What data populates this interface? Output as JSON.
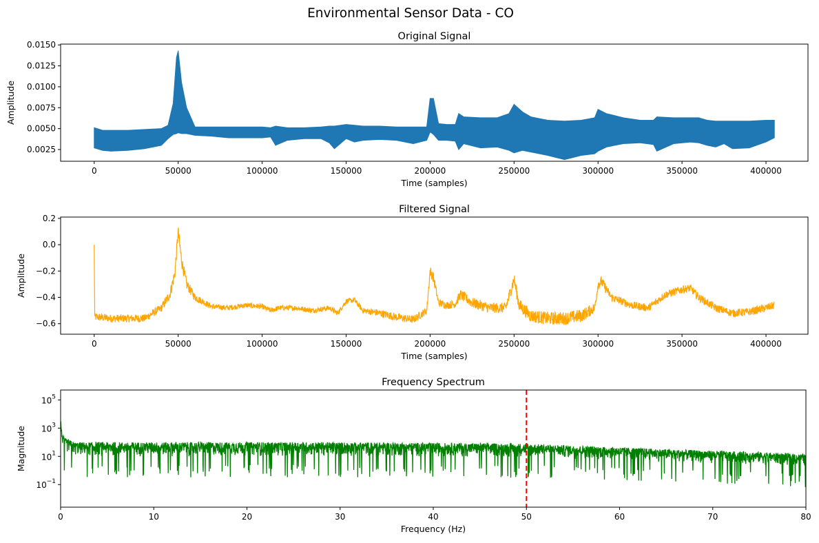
{
  "figure": {
    "suptitle": "Environmental Sensor Data - CO"
  },
  "chart_data": [
    {
      "type": "line",
      "title": "Original Signal",
      "xlabel": "Time (samples)",
      "ylabel": "Amplitude",
      "color": "#1f77b4",
      "render": "band",
      "xlim": [
        -20000,
        425000
      ],
      "ylim": [
        0.0011,
        0.0151
      ],
      "xticks": [
        0,
        50000,
        100000,
        150000,
        200000,
        250000,
        300000,
        350000,
        400000
      ],
      "xtick_labels": [
        "0",
        "50000",
        "100000",
        "150000",
        "200000",
        "250000",
        "300000",
        "350000",
        "400000"
      ],
      "yticks": [
        0.0025,
        0.005,
        0.0075,
        0.01,
        0.0125,
        0.015
      ],
      "ytick_labels": [
        "0.0025",
        "0.0050",
        "0.0075",
        "0.0100",
        "0.0125",
        "0.0150"
      ],
      "series": [
        {
          "x": [
            0,
            5000,
            10000,
            20000,
            30000,
            40000,
            44000,
            47000,
            49000,
            50000,
            52000,
            55000,
            60000,
            70000,
            80000,
            90000,
            100000,
            105000,
            108000,
            115000,
            125000,
            135000,
            140000,
            143000,
            150000,
            155000,
            160000,
            170000,
            180000,
            190000,
            198000,
            200000,
            202000,
            205000,
            210000,
            215000,
            217000,
            220000,
            230000,
            240000,
            247000,
            250000,
            255000,
            260000,
            270000,
            280000,
            290000,
            298000,
            300000,
            305000,
            315000,
            325000,
            333000,
            335000,
            345000,
            355000,
            360000,
            365000,
            370000,
            375000,
            380000,
            390000,
            400000,
            405000
          ],
          "upper": [
            0.0051,
            0.0048,
            0.0048,
            0.0048,
            0.0049,
            0.005,
            0.0054,
            0.008,
            0.0135,
            0.0143,
            0.0105,
            0.0075,
            0.0052,
            0.0052,
            0.0052,
            0.0052,
            0.0052,
            0.0051,
            0.0053,
            0.0051,
            0.0051,
            0.0052,
            0.0053,
            0.0053,
            0.0055,
            0.0054,
            0.0053,
            0.0053,
            0.0052,
            0.0052,
            0.0052,
            0.0086,
            0.0086,
            0.0056,
            0.0055,
            0.0055,
            0.0068,
            0.0064,
            0.0063,
            0.0063,
            0.0068,
            0.0079,
            0.007,
            0.0064,
            0.006,
            0.0059,
            0.006,
            0.0063,
            0.0073,
            0.0068,
            0.0063,
            0.006,
            0.006,
            0.0064,
            0.0063,
            0.0063,
            0.0063,
            0.006,
            0.0059,
            0.0059,
            0.0059,
            0.0059,
            0.006,
            0.006
          ],
          "lower": [
            0.0027,
            0.0024,
            0.0023,
            0.0024,
            0.0026,
            0.003,
            0.0038,
            0.0043,
            0.0044,
            0.0045,
            0.0044,
            0.0044,
            0.0042,
            0.0041,
            0.0039,
            0.0039,
            0.0039,
            0.004,
            0.003,
            0.0036,
            0.0038,
            0.0038,
            0.0033,
            0.0026,
            0.0038,
            0.0034,
            0.0036,
            0.0037,
            0.0036,
            0.0032,
            0.0036,
            0.0046,
            0.0043,
            0.0036,
            0.0036,
            0.0035,
            0.0025,
            0.0032,
            0.0027,
            0.0028,
            0.0024,
            0.0021,
            0.0024,
            0.0022,
            0.0018,
            0.0013,
            0.0018,
            0.002,
            0.0023,
            0.0028,
            0.0032,
            0.0033,
            0.0031,
            0.0023,
            0.0032,
            0.0034,
            0.0033,
            0.003,
            0.0028,
            0.0032,
            0.0026,
            0.0027,
            0.0034,
            0.0039
          ]
        }
      ]
    },
    {
      "type": "line",
      "title": "Filtered Signal",
      "xlabel": "Time (samples)",
      "ylabel": "Amplitude",
      "color": "#ffa500",
      "render": "noisy-line",
      "xlim": [
        -20000,
        425000
      ],
      "ylim": [
        -0.68,
        0.21
      ],
      "xticks": [
        0,
        50000,
        100000,
        150000,
        200000,
        250000,
        300000,
        350000,
        400000
      ],
      "xtick_labels": [
        "0",
        "50000",
        "100000",
        "150000",
        "200000",
        "250000",
        "300000",
        "350000",
        "400000"
      ],
      "yticks": [
        -0.6,
        -0.4,
        -0.2,
        0.0,
        0.2
      ],
      "ytick_labels": [
        "−0.6",
        "−0.4",
        "−0.2",
        "0.0",
        "0.2"
      ],
      "series": [
        {
          "x": [
            0,
            300,
            600,
            2000,
            10000,
            20000,
            30000,
            40000,
            45000,
            48000,
            50000,
            52000,
            55000,
            60000,
            70000,
            80000,
            90000,
            100000,
            105000,
            110000,
            120000,
            130000,
            140000,
            145000,
            150000,
            155000,
            160000,
            170000,
            180000,
            190000,
            198000,
            200000,
            202000,
            205000,
            210000,
            215000,
            218000,
            225000,
            235000,
            245000,
            250000,
            253000,
            260000,
            270000,
            280000,
            290000,
            298000,
            300000,
            302000,
            308000,
            320000,
            330000,
            340000,
            350000,
            355000,
            360000,
            370000,
            380000,
            390000,
            400000,
            405000
          ],
          "y": [
            0.0,
            -0.55,
            -0.55,
            -0.55,
            -0.56,
            -0.56,
            -0.56,
            -0.48,
            -0.38,
            -0.22,
            0.1,
            -0.12,
            -0.3,
            -0.4,
            -0.47,
            -0.48,
            -0.46,
            -0.47,
            -0.5,
            -0.48,
            -0.48,
            -0.5,
            -0.48,
            -0.52,
            -0.43,
            -0.42,
            -0.5,
            -0.52,
            -0.55,
            -0.57,
            -0.5,
            -0.2,
            -0.25,
            -0.44,
            -0.46,
            -0.45,
            -0.38,
            -0.44,
            -0.48,
            -0.48,
            -0.26,
            -0.46,
            -0.54,
            -0.56,
            -0.56,
            -0.54,
            -0.48,
            -0.3,
            -0.28,
            -0.4,
            -0.46,
            -0.48,
            -0.38,
            -0.34,
            -0.33,
            -0.4,
            -0.48,
            -0.52,
            -0.51,
            -0.48,
            -0.46
          ],
          "noise": [
            0.0,
            0.03,
            0.03,
            0.03,
            0.03,
            0.03,
            0.03,
            0.03,
            0.04,
            0.05,
            0.05,
            0.05,
            0.04,
            0.03,
            0.02,
            0.02,
            0.02,
            0.02,
            0.02,
            0.02,
            0.02,
            0.02,
            0.02,
            0.02,
            0.02,
            0.02,
            0.02,
            0.03,
            0.03,
            0.03,
            0.03,
            0.04,
            0.04,
            0.03,
            0.03,
            0.03,
            0.04,
            0.04,
            0.04,
            0.04,
            0.05,
            0.05,
            0.05,
            0.05,
            0.05,
            0.05,
            0.04,
            0.04,
            0.04,
            0.03,
            0.03,
            0.03,
            0.03,
            0.03,
            0.03,
            0.03,
            0.03,
            0.03,
            0.03,
            0.03,
            0.03
          ]
        }
      ]
    },
    {
      "type": "line",
      "title": "Frequency Spectrum",
      "xlabel": "Frequency (Hz)",
      "ylabel": "Magnitude",
      "color": "#008000",
      "render": "log-spectrum",
      "xscale": "linear",
      "yscale": "log",
      "xlim": [
        0,
        80
      ],
      "ylim_exp": [
        -2.6,
        5.7
      ],
      "xticks": [
        0,
        10,
        20,
        30,
        40,
        50,
        60,
        70,
        80
      ],
      "xtick_labels": [
        "0",
        "10",
        "20",
        "30",
        "40",
        "50",
        "60",
        "70",
        "80"
      ],
      "yticks_exp": [
        -1,
        1,
        3,
        5
      ],
      "ytick_labels": [
        {
          "base": "10",
          "exp": "−1"
        },
        {
          "base": "10",
          "exp": "1"
        },
        {
          "base": "10",
          "exp": "3"
        },
        {
          "base": "10",
          "exp": "5"
        }
      ],
      "series": [
        {
          "x": [
            0,
            0.05,
            0.1,
            0.2,
            0.4,
            0.8,
            1.5,
            5,
            10,
            20,
            30,
            40,
            50,
            55,
            60,
            65,
            70,
            75,
            80
          ],
          "log10_upper": [
            3.5,
            3.3,
            2.9,
            2.6,
            2.3,
            2.2,
            2.0,
            2.0,
            2.0,
            2.0,
            2.0,
            1.95,
            1.9,
            1.75,
            1.65,
            1.5,
            1.4,
            1.3,
            1.15
          ],
          "log10_lower": [
            2.5,
            2.0,
            1.6,
            1.3,
            0.8,
            0.6,
            0.4,
            0.4,
            0.4,
            0.4,
            0.4,
            0.4,
            0.35,
            0.3,
            0.2,
            0.1,
            0.0,
            -0.1,
            -0.3
          ]
        }
      ],
      "reference_line": {
        "x": 50,
        "color": "#ff0000",
        "style": "dashed"
      }
    }
  ]
}
